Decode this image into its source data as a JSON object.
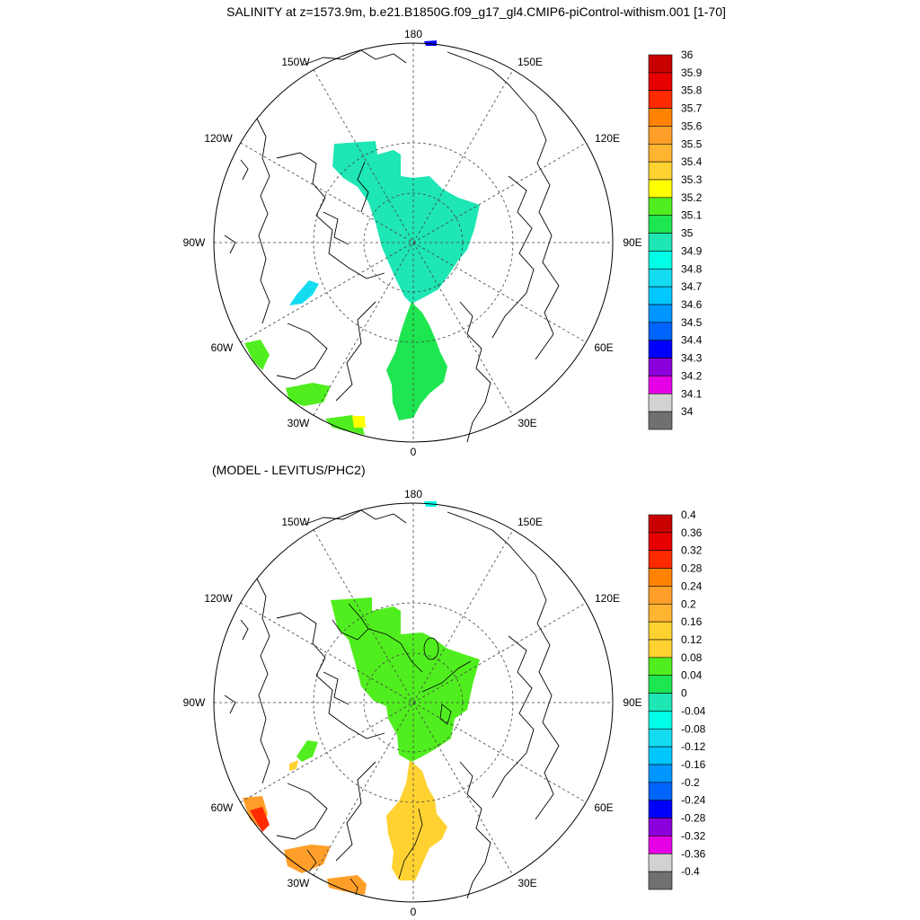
{
  "title": "SALINITY at z=1573.9m, b.e21.B1850G.f09_g17_gl4.CMIP6-piControl-withism.001 [1-70]",
  "subtitle": "(MODEL - LEVITUS/PHC2)",
  "lon_labels": [
    "180",
    "150E",
    "120E",
    "90E",
    "60E",
    "30E",
    "0",
    "30W",
    "60W",
    "90W",
    "120W",
    "150W"
  ],
  "top_colorbar": {
    "labels": [
      "36",
      "35.9",
      "35.8",
      "35.7",
      "35.6",
      "35.5",
      "35.4",
      "35.3",
      "35.2",
      "35.1",
      "35",
      "34.9",
      "34.8",
      "34.7",
      "34.6",
      "34.5",
      "34.4",
      "34.3",
      "34.2",
      "34.1",
      "34"
    ],
    "colors": [
      "#c80000",
      "#e60000",
      "#ff2a00",
      "#ff8200",
      "#ff9f2a",
      "#ffb432",
      "#ffd232",
      "#ffff00",
      "#50ee1e",
      "#1ee650",
      "#1ee6b4",
      "#00ffe6",
      "#14dcf0",
      "#00c8ff",
      "#0096ff",
      "#0064ff",
      "#0000ff",
      "#8c00dc",
      "#e600e6",
      "#d2d2d2",
      "#707070"
    ]
  },
  "bottom_colorbar": {
    "labels": [
      "0.4",
      "0.36",
      "0.32",
      "0.28",
      "0.24",
      "0.2",
      "0.16",
      "0.12",
      "0.08",
      "0.04",
      "0",
      "-0.04",
      "-0.08",
      "-0.12",
      "-0.16",
      "-0.2",
      "-0.24",
      "-0.28",
      "-0.32",
      "-0.36",
      "-0.4"
    ],
    "colors": [
      "#c80000",
      "#e60000",
      "#ff2a00",
      "#ff8200",
      "#ff9f2a",
      "#ffb432",
      "#ffd232",
      "#ffd232",
      "#50ee1e",
      "#1ee650",
      "#1ee6b4",
      "#00ffe6",
      "#14dcf0",
      "#00c8ff",
      "#0096ff",
      "#0064ff",
      "#0000ff",
      "#8c00dc",
      "#e600e6",
      "#d2d2d2",
      "#707070"
    ]
  },
  "field_colors": {
    "top_main": "#1ee6b4",
    "top_atlantic": "#1ee650",
    "top_lime": "#50ee1e",
    "top_cyan": "#14dcf0",
    "top_blue": "#0000ff",
    "top_yellow": "#ffff00",
    "bot_green": "#50ee1e",
    "bot_yellow": "#ffd232",
    "bot_orange": "#ff9f2a",
    "bot_red": "#ff2a00",
    "bot_cyan": "#00ffe6"
  }
}
